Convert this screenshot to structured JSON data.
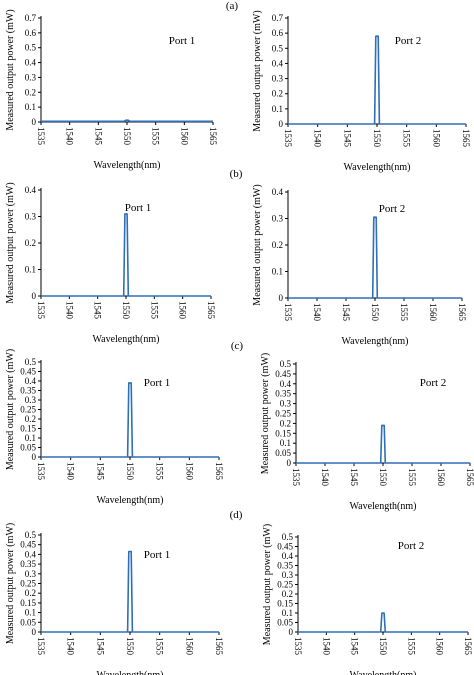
{
  "figure": {
    "row_labels": [
      "(a)",
      "(b)",
      "(c)",
      "(d)"
    ]
  },
  "chart_data": [
    {
      "type": "line",
      "row": "(a)",
      "title": "Port 1",
      "xlabel": "Wavelength(nm)",
      "ylabel": "Measured output power (mW)",
      "xlim": [
        1535,
        1565
      ],
      "ylim": [
        0,
        0.7
      ],
      "xticks": [
        "1535",
        "1540",
        "1545",
        "1550",
        "1555",
        "1560",
        "1565"
      ],
      "yticks": [
        "0",
        "0.1",
        "0.2",
        "0.3",
        "0.4",
        "0.5",
        "0.6",
        "0.7"
      ],
      "series": [
        {
          "x": [
            1535,
            1549.5,
            1549.8,
            1550.2,
            1550.5,
            1565
          ],
          "values": [
            0.005,
            0.005,
            0.012,
            0.012,
            0.005,
            0.005
          ]
        }
      ],
      "color": "#2e6fb7"
    },
    {
      "type": "line",
      "row": "(a)",
      "title": "Port 2",
      "xlabel": "Wavelength(nm)",
      "ylabel": "Measured output power (mW)",
      "xlim": [
        1535,
        1565
      ],
      "ylim": [
        0,
        0.7
      ],
      "xticks": [
        "1535",
        "1540",
        "1545",
        "1550",
        "1555",
        "1560",
        "1565"
      ],
      "yticks": [
        "0",
        "0.1",
        "0.2",
        "0.3",
        "0.4",
        "0.5",
        "0.6",
        "0.7"
      ],
      "series": [
        {
          "x": [
            1535,
            1549.6,
            1549.8,
            1550.2,
            1550.4,
            1565
          ],
          "values": [
            0,
            0,
            0.58,
            0.58,
            0,
            0
          ]
        }
      ],
      "color": "#2e6fb7"
    },
    {
      "type": "line",
      "row": "(b)",
      "title": "Port 1",
      "xlabel": "Wavelength(nm)",
      "ylabel": "Measured output power (mW)",
      "xlim": [
        1535,
        1565
      ],
      "ylim": [
        0,
        0.4
      ],
      "xticks": [
        "1535",
        "1540",
        "1545",
        "1550",
        "1555",
        "1560",
        "1565"
      ],
      "yticks": [
        "0",
        "0.1",
        "0.2",
        "0.3",
        "0.4"
      ],
      "series": [
        {
          "x": [
            1535,
            1549.6,
            1549.8,
            1550.2,
            1550.4,
            1565
          ],
          "values": [
            0,
            0,
            0.31,
            0.31,
            0,
            0
          ]
        }
      ],
      "color": "#2e6fb7"
    },
    {
      "type": "line",
      "row": "(b)",
      "title": "Port 2",
      "xlabel": "Wavelength(nm)",
      "ylabel": "Measured output power (mW)",
      "xlim": [
        1535,
        1565
      ],
      "ylim": [
        0,
        0.4
      ],
      "xticks": [
        "1535",
        "1540",
        "1545",
        "1550",
        "1555",
        "1560",
        "1565"
      ],
      "yticks": [
        "0",
        "0.1",
        "0.2",
        "0.3",
        "0.4"
      ],
      "series": [
        {
          "x": [
            1535,
            1549.6,
            1549.8,
            1550.2,
            1550.4,
            1565
          ],
          "values": [
            0,
            0,
            0.305,
            0.305,
            0,
            0
          ]
        }
      ],
      "color": "#2e6fb7"
    },
    {
      "type": "line",
      "row": "(c)",
      "title": "Port 1",
      "xlabel": "Wavelength(nm)",
      "ylabel": "Measured output power (mW)",
      "xlim": [
        1535,
        1565
      ],
      "ylim": [
        0,
        0.5
      ],
      "xticks": [
        "1535",
        "1540",
        "1545",
        "1550",
        "1555",
        "1560",
        "1565"
      ],
      "yticks": [
        "0",
        "0.05",
        "0.1",
        "0.15",
        "0.2",
        "0.25",
        "0.3",
        "0.35",
        "0.4",
        "0.45",
        "0.5"
      ],
      "series": [
        {
          "x": [
            1535,
            1549.6,
            1549.8,
            1550.2,
            1550.4,
            1565
          ],
          "values": [
            0,
            0,
            0.39,
            0.39,
            0,
            0
          ]
        }
      ],
      "color": "#2e6fb7"
    },
    {
      "type": "line",
      "row": "(c)",
      "title": "Port 2",
      "xlabel": "Wavelength(nm)",
      "ylabel": "Measured output power (mW)",
      "xlim": [
        1535,
        1565
      ],
      "ylim": [
        0,
        0.5
      ],
      "xticks": [
        "1535",
        "1540",
        "1545",
        "1550",
        "1555",
        "1560",
        "1565"
      ],
      "yticks": [
        "0",
        "0.05",
        "0.1",
        "0.15",
        "0.2",
        "0.25",
        "0.3",
        "0.35",
        "0.4",
        "0.45",
        "0.5"
      ],
      "series": [
        {
          "x": [
            1535,
            1549.6,
            1549.8,
            1550.2,
            1550.4,
            1565
          ],
          "values": [
            0,
            0,
            0.19,
            0.19,
            0,
            0
          ]
        }
      ],
      "color": "#2e6fb7"
    },
    {
      "type": "line",
      "row": "(d)",
      "title": "Port 1",
      "xlabel": "Wavelength(nm)",
      "ylabel": "Measured output power (mW)",
      "xlim": [
        1535,
        1565
      ],
      "ylim": [
        0,
        0.5
      ],
      "xticks": [
        "1535",
        "1540",
        "1545",
        "1550",
        "1555",
        "1560",
        "1565"
      ],
      "yticks": [
        "0",
        "0.05",
        "0.1",
        "0.15",
        "0.2",
        "0.25",
        "0.3",
        "0.35",
        "0.4",
        "0.45",
        "0.5"
      ],
      "series": [
        {
          "x": [
            1535,
            1549.6,
            1549.8,
            1550.2,
            1550.4,
            1565
          ],
          "values": [
            0,
            0,
            0.415,
            0.415,
            0,
            0
          ]
        }
      ],
      "color": "#2e6fb7"
    },
    {
      "type": "line",
      "row": "(d)",
      "title": "Port 2",
      "xlabel": "Wavelength(nm)",
      "ylabel": "Measured output power (mW)",
      "xlim": [
        1535,
        1565
      ],
      "ylim": [
        0,
        0.5
      ],
      "xticks": [
        "1535",
        "1540",
        "1545",
        "1550",
        "1555",
        "1560",
        "1565"
      ],
      "yticks": [
        "0",
        "0.05",
        "0.1",
        "0.15",
        "0.2",
        "0.25",
        "0.3",
        "0.35",
        "0.4",
        "0.45",
        "0.5"
      ],
      "series": [
        {
          "x": [
            1535,
            1549.6,
            1549.8,
            1550.2,
            1550.4,
            1565
          ],
          "values": [
            0,
            0,
            0.1,
            0.1,
            0,
            0
          ]
        }
      ],
      "color": "#2e6fb7"
    }
  ]
}
